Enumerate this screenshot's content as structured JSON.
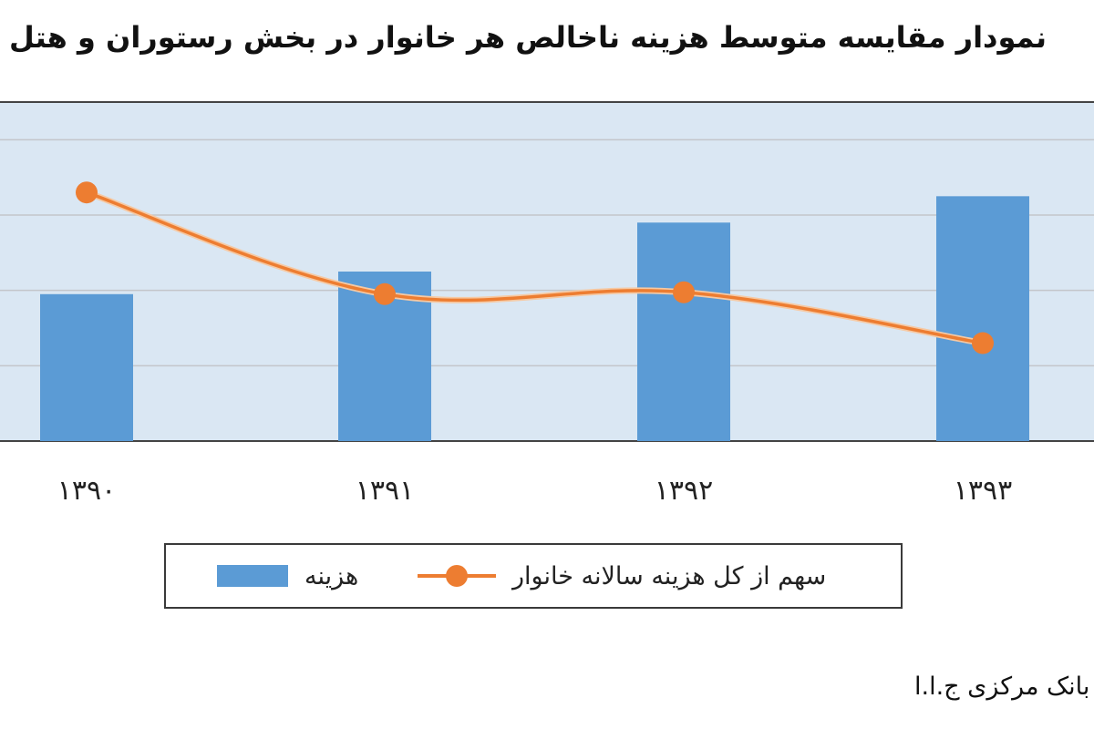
{
  "chart_data": {
    "type": "bar+line",
    "title": "نمودار مقایسه متوسط هزینه ناخالص هر خانوار در بخش رستوران و هتل",
    "categories": [
      "۱۳۹۰",
      "۱۳۹۱",
      "۱۳۹۲",
      "۱۳۹۳"
    ],
    "series": [
      {
        "name": "هزینه",
        "type": "bar",
        "color": "#5b9bd5",
        "values": [
          3.9,
          4.5,
          5.8,
          6.5
        ]
      },
      {
        "name": "سهم از کل هزینه سالانه خانوار",
        "type": "line",
        "color": "#ed7d31",
        "values": [
          6.6,
          3.9,
          3.95,
          2.6
        ]
      }
    ],
    "ylim": [
      0,
      9
    ],
    "grid": true,
    "legend_position": "bottom"
  },
  "source": "بانک مرکزی ج.ا.ا"
}
